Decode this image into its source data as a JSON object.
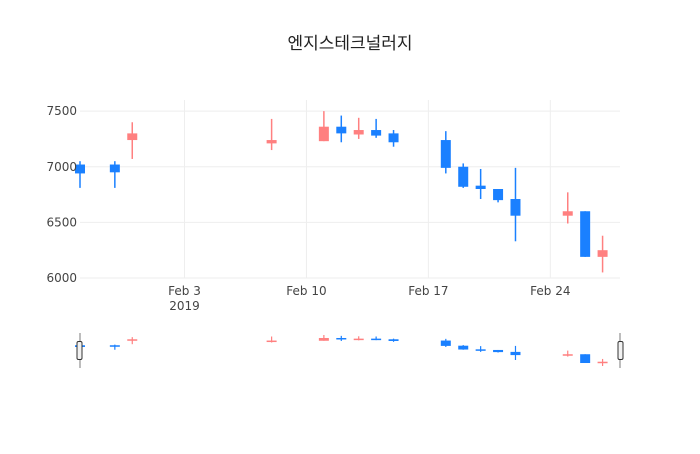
{
  "chart_data": {
    "type": "candlestick",
    "title": "엔지스테크널러지",
    "xlabel": "",
    "ylabel": "",
    "x_range": [
      "2019-01-28",
      "2019-02-28"
    ],
    "ylim": [
      6000,
      7600
    ],
    "y_ticks": [
      6000,
      6500,
      7000,
      7500
    ],
    "x_ticks": [
      {
        "date": "2019-02-03",
        "label": "Feb 3",
        "sublabel": "2019"
      },
      {
        "date": "2019-02-10",
        "label": "Feb 10",
        "sublabel": ""
      },
      {
        "date": "2019-02-17",
        "label": "Feb 17",
        "sublabel": ""
      },
      {
        "date": "2019-02-24",
        "label": "Feb 24",
        "sublabel": ""
      }
    ],
    "grid": true,
    "legend": "none",
    "rangeslider": true,
    "increasing_color": "#ff8080",
    "decreasing_color": "#1a80ff",
    "candles": [
      {
        "date": "2019-01-28",
        "open": 7020,
        "high": 7050,
        "low": 6810,
        "close": 6940
      },
      {
        "date": "2019-01-30",
        "open": 7020,
        "high": 7050,
        "low": 6810,
        "close": 6950
      },
      {
        "date": "2019-01-31",
        "open": 7240,
        "high": 7400,
        "low": 7070,
        "close": 7300
      },
      {
        "date": "2019-02-08",
        "open": 7210,
        "high": 7430,
        "low": 7150,
        "close": 7240
      },
      {
        "date": "2019-02-11",
        "open": 7230,
        "high": 7500,
        "low": 7230,
        "close": 7360
      },
      {
        "date": "2019-02-12",
        "open": 7360,
        "high": 7460,
        "low": 7220,
        "close": 7300
      },
      {
        "date": "2019-02-13",
        "open": 7290,
        "high": 7440,
        "low": 7250,
        "close": 7330
      },
      {
        "date": "2019-02-14",
        "open": 7330,
        "high": 7430,
        "low": 7260,
        "close": 7280
      },
      {
        "date": "2019-02-15",
        "open": 7300,
        "high": 7330,
        "low": 7180,
        "close": 7220
      },
      {
        "date": "2019-02-18",
        "open": 7240,
        "high": 7320,
        "low": 6940,
        "close": 6990
      },
      {
        "date": "2019-02-19",
        "open": 7000,
        "high": 7030,
        "low": 6810,
        "close": 6820
      },
      {
        "date": "2019-02-20",
        "open": 6830,
        "high": 6980,
        "low": 6710,
        "close": 6800
      },
      {
        "date": "2019-02-21",
        "open": 6800,
        "high": 6800,
        "low": 6680,
        "close": 6700
      },
      {
        "date": "2019-02-22",
        "open": 6710,
        "high": 6990,
        "low": 6330,
        "close": 6560
      },
      {
        "date": "2019-02-25",
        "open": 6560,
        "high": 6770,
        "low": 6490,
        "close": 6600
      },
      {
        "date": "2019-02-26",
        "open": 6600,
        "high": 6600,
        "low": 6190,
        "close": 6190
      },
      {
        "date": "2019-02-27",
        "open": 6190,
        "high": 6380,
        "low": 6050,
        "close": 6250
      }
    ]
  }
}
